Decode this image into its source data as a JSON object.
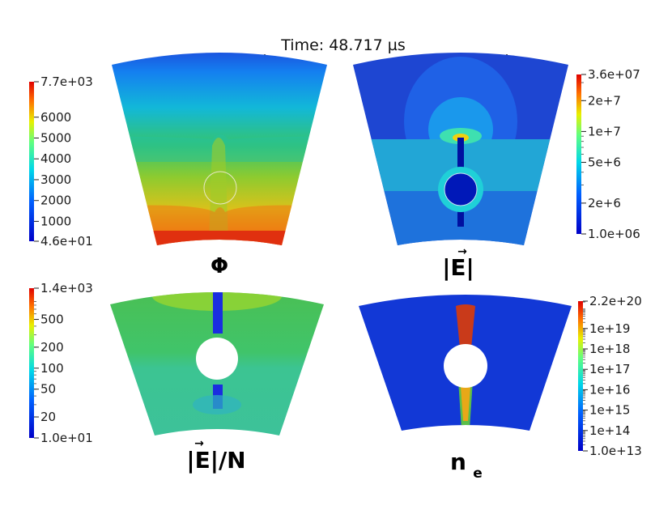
{
  "title": "Time: 48.717 µs",
  "colors": {
    "jet": [
      "#00008f",
      "#0000ff",
      "#0080ff",
      "#00ffff",
      "#80ff80",
      "#ffff00",
      "#ff8000",
      "#ff0000",
      "#800000"
    ],
    "background": "#ffffff"
  },
  "chart_data": [
    {
      "type": "heatmap",
      "panel_label": "Φ",
      "colorbar": {
        "scale": "linear",
        "min_label": "4.6e+01",
        "max_label": "7.7e+03",
        "range": [
          46,
          7700
        ],
        "ticks": [
          {
            "value": 1000,
            "label": "1000"
          },
          {
            "value": 2000,
            "label": "2000"
          },
          {
            "value": 3000,
            "label": "3000"
          },
          {
            "value": 4000,
            "label": "4000"
          },
          {
            "value": 5000,
            "label": "5000"
          },
          {
            "value": 6000,
            "label": "6000"
          }
        ]
      }
    },
    {
      "type": "heatmap",
      "panel_label": "|E|",
      "colorbar": {
        "scale": "log",
        "min_label": "1.0e+06",
        "max_label": "3.6e+07",
        "range": [
          1000000,
          36000000
        ],
        "ticks": [
          {
            "value": 2000000,
            "label": "2e+6"
          },
          {
            "value": 5000000,
            "label": "5e+6"
          },
          {
            "value": 10000000,
            "label": "1e+7"
          },
          {
            "value": 20000000,
            "label": "2e+7"
          }
        ]
      }
    },
    {
      "type": "heatmap",
      "panel_label": "|E|/N",
      "colorbar": {
        "scale": "log",
        "min_label": "1.0e+01",
        "max_label": "1.4e+03",
        "range": [
          10,
          1400
        ],
        "ticks": [
          {
            "value": 20,
            "label": "20"
          },
          {
            "value": 50,
            "label": "50"
          },
          {
            "value": 100,
            "label": "100"
          },
          {
            "value": 200,
            "label": "200"
          },
          {
            "value": 500,
            "label": "500"
          }
        ]
      }
    },
    {
      "type": "heatmap",
      "panel_label": "n",
      "panel_label_sub": "e",
      "colorbar": {
        "scale": "log",
        "min_label": "1.0e+13",
        "max_label": "2.2e+20",
        "range": [
          10000000000000.0,
          2.2e+20
        ],
        "ticks": [
          {
            "value": 100000000000000.0,
            "label": "1e+14"
          },
          {
            "value": 1000000000000000.0,
            "label": "1e+15"
          },
          {
            "value": 1e+16,
            "label": "1e+16"
          },
          {
            "value": 1e+17,
            "label": "1e+17"
          },
          {
            "value": 1e+18,
            "label": "1e+18"
          },
          {
            "value": 1e+19,
            "label": "1e+19"
          }
        ]
      }
    }
  ]
}
